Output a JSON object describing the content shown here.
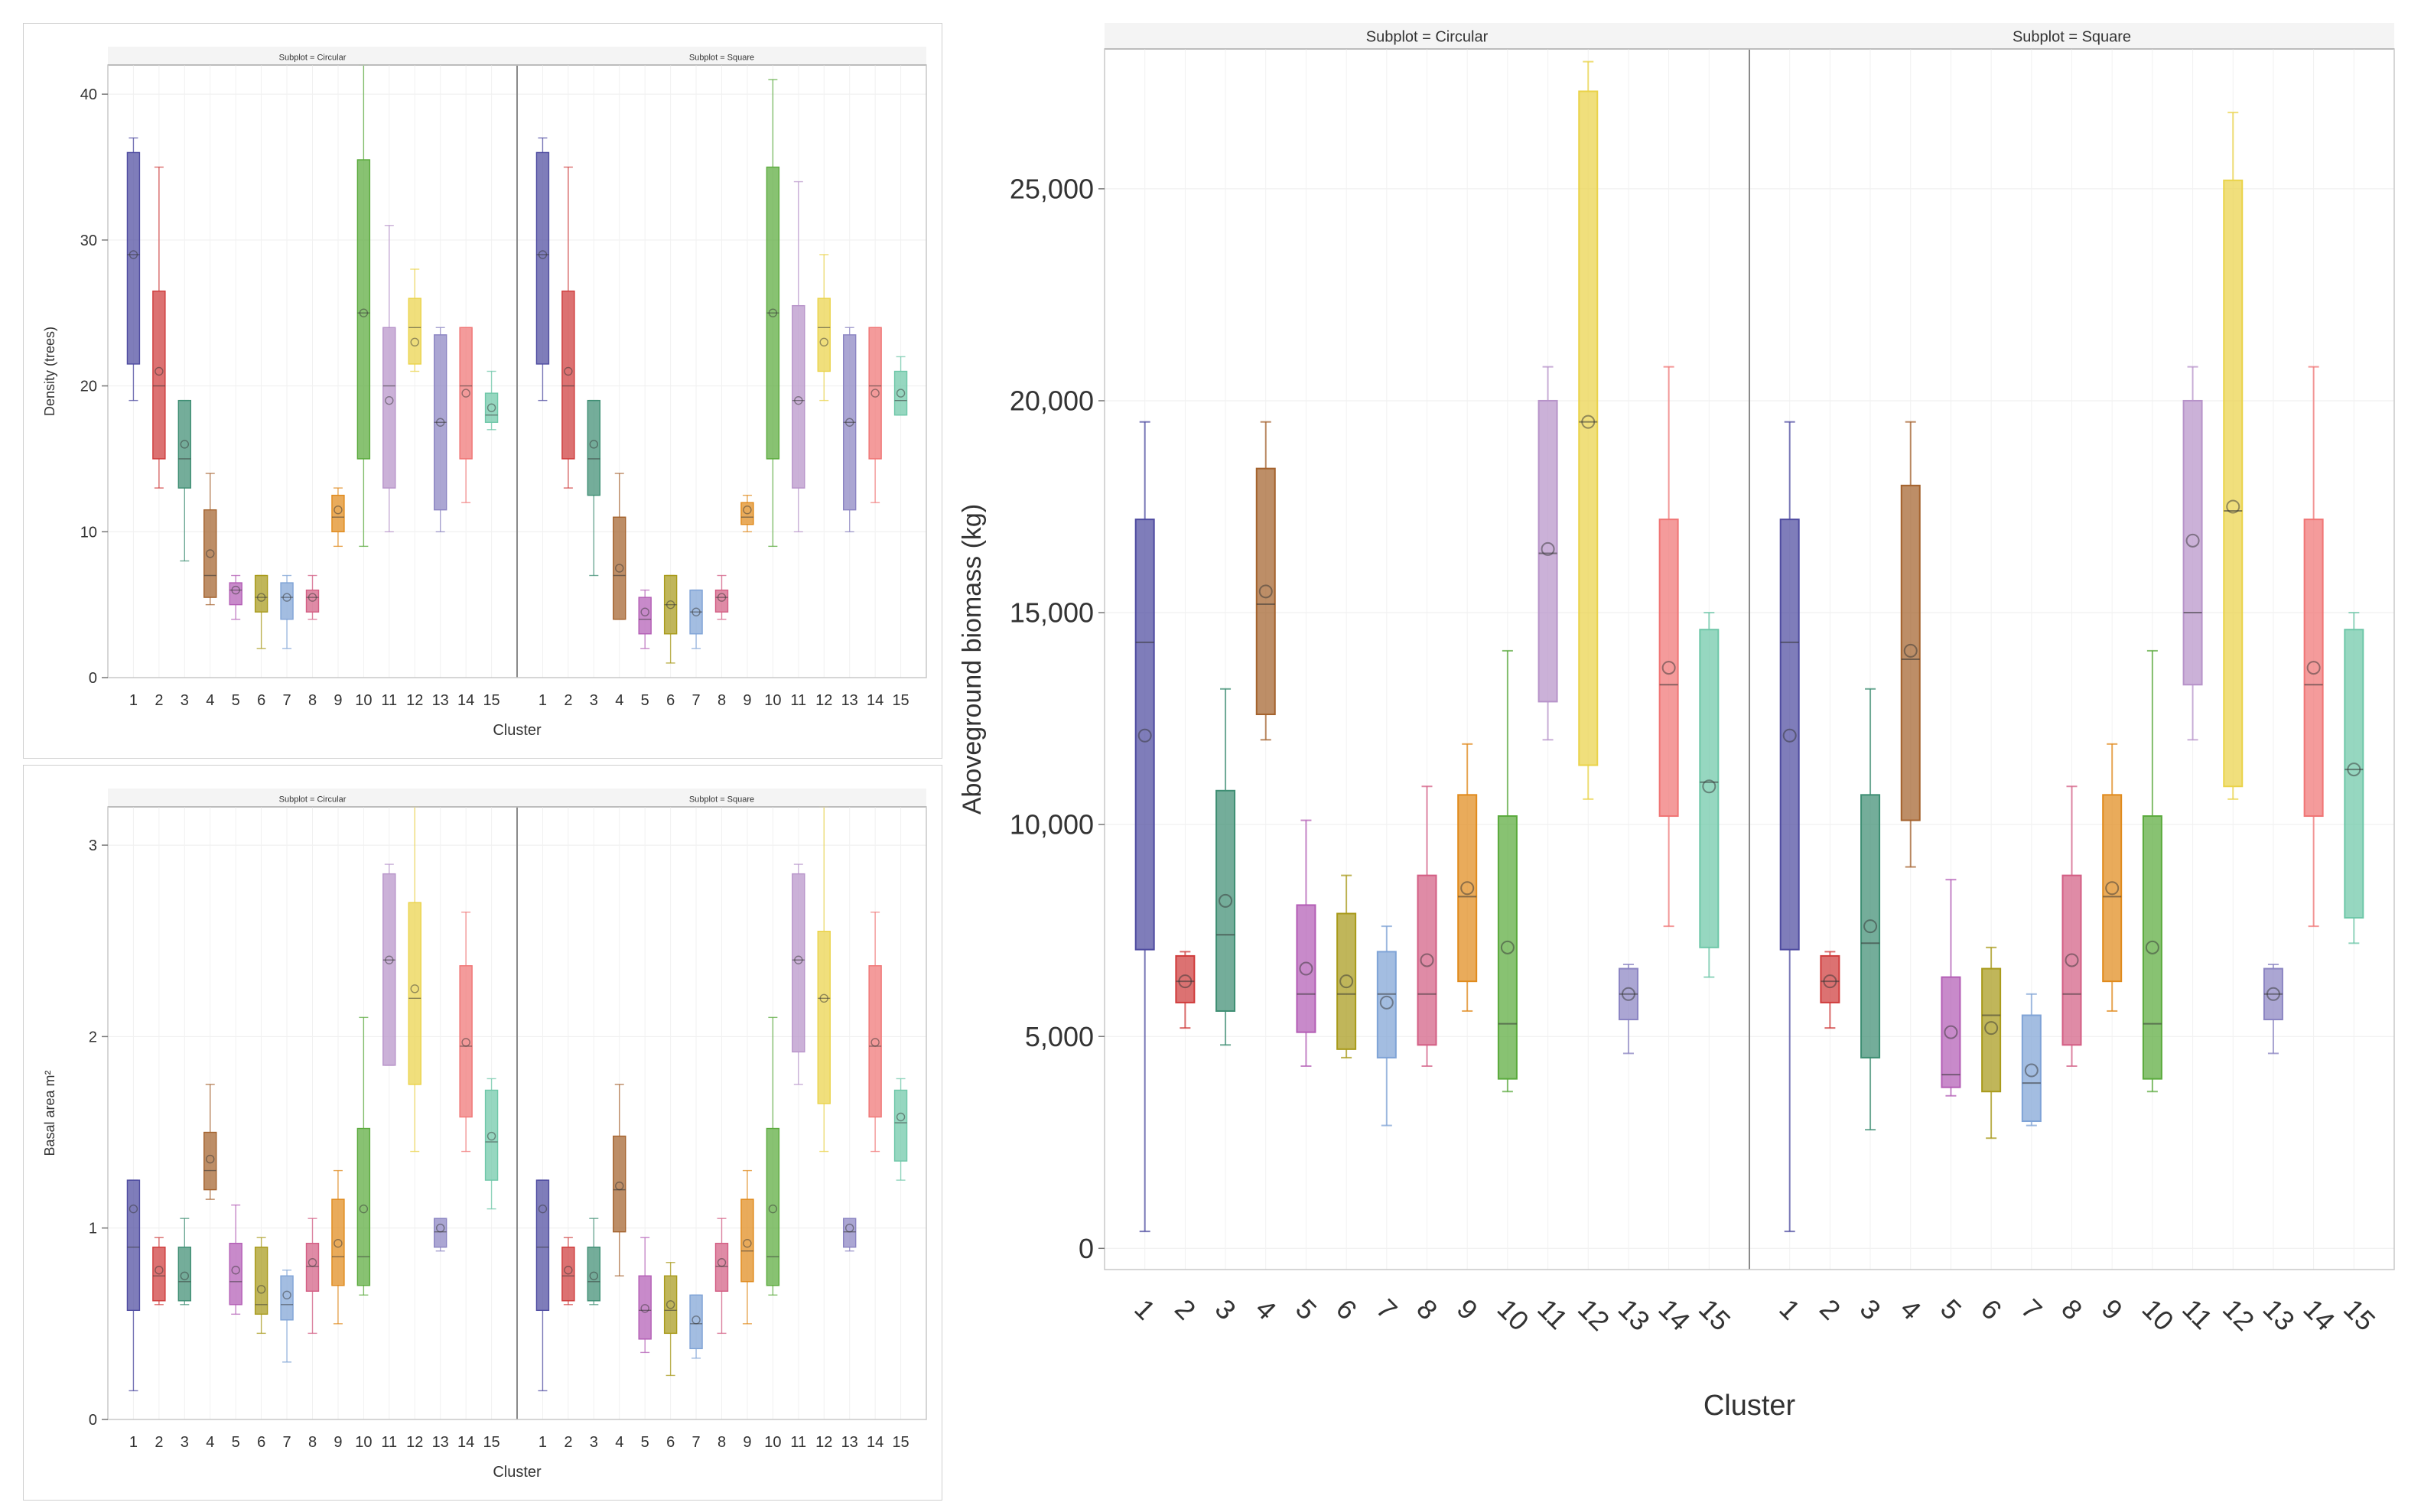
{
  "colors": [
    "#4e4ba0",
    "#cf3b3b",
    "#3e8e73",
    "#a4622d",
    "#b35db5",
    "#a89a1a",
    "#7fa3d6",
    "#d35e84",
    "#e08a1c",
    "#5aaa3c",
    "#b793c9",
    "#ead34a",
    "#8b84c2",
    "#f07575",
    "#6ec7a8"
  ],
  "chart_data": [
    {
      "type": "box",
      "id": "density",
      "xlabel": "Cluster",
      "ylabel": "Density (trees)",
      "ylim": [
        0,
        42
      ],
      "yticks": [
        "0",
        "10",
        "20",
        "30",
        "40"
      ],
      "ytick_values": [
        0,
        10,
        20,
        30,
        40
      ],
      "categories": [
        "1",
        "2",
        "3",
        "4",
        "5",
        "6",
        "7",
        "8",
        "9",
        "10",
        "11",
        "12",
        "13",
        "14",
        "15"
      ],
      "facets": [
        {
          "title": "Subplot = Circular",
          "boxes": [
            {
              "min": 19,
              "q1": 21.5,
              "median": 29,
              "q3": 36,
              "max": 37,
              "mean": 29
            },
            {
              "min": 13,
              "q1": 15,
              "median": 20,
              "q3": 26.5,
              "max": 35,
              "mean": 21
            },
            {
              "min": 8,
              "q1": 13,
              "median": 15,
              "q3": 19,
              "max": 19,
              "mean": 16
            },
            {
              "min": 5,
              "q1": 5.5,
              "median": 7,
              "q3": 11.5,
              "max": 14,
              "mean": 8.5
            },
            {
              "min": 4,
              "q1": 5,
              "median": 6,
              "q3": 6.5,
              "max": 7,
              "mean": 6
            },
            {
              "min": 2,
              "q1": 4.5,
              "median": 5.5,
              "q3": 7,
              "max": 7,
              "mean": 5.5
            },
            {
              "min": 2,
              "q1": 4,
              "median": 5.5,
              "q3": 6.5,
              "max": 7,
              "mean": 5.5
            },
            {
              "min": 4,
              "q1": 4.5,
              "median": 5.5,
              "q3": 6,
              "max": 7,
              "mean": 5.5
            },
            {
              "min": 9,
              "q1": 10,
              "median": 11,
              "q3": 12.5,
              "max": 13,
              "mean": 11.5
            },
            {
              "min": 9,
              "q1": 15,
              "median": 25,
              "q3": 35.5,
              "max": 42,
              "mean": 25
            },
            {
              "min": 10,
              "q1": 13,
              "median": 20,
              "q3": 24,
              "max": 31,
              "mean": 19
            },
            {
              "min": 21,
              "q1": 21.5,
              "median": 24,
              "q3": 26,
              "max": 28,
              "mean": 23
            },
            {
              "min": 10,
              "q1": 11.5,
              "median": 17.5,
              "q3": 23.5,
              "max": 24,
              "mean": 17.5
            },
            {
              "min": 12,
              "q1": 15,
              "median": 20,
              "q3": 24,
              "max": 24,
              "mean": 19.5
            },
            {
              "min": 17,
              "q1": 17.5,
              "median": 18,
              "q3": 19.5,
              "max": 21,
              "mean": 18.5
            }
          ]
        },
        {
          "title": "Subplot = Square",
          "boxes": [
            {
              "min": 19,
              "q1": 21.5,
              "median": 29,
              "q3": 36,
              "max": 37,
              "mean": 29
            },
            {
              "min": 13,
              "q1": 15,
              "median": 20,
              "q3": 26.5,
              "max": 35,
              "mean": 21
            },
            {
              "min": 7,
              "q1": 12.5,
              "median": 15,
              "q3": 19,
              "max": 19,
              "mean": 16
            },
            {
              "min": 4,
              "q1": 4,
              "median": 7,
              "q3": 11,
              "max": 14,
              "mean": 7.5
            },
            {
              "min": 2,
              "q1": 3,
              "median": 4,
              "q3": 5.5,
              "max": 6,
              "mean": 4.5
            },
            {
              "min": 1,
              "q1": 3,
              "median": 5,
              "q3": 7,
              "max": 7,
              "mean": 5
            },
            {
              "min": 2,
              "q1": 3,
              "median": 4.5,
              "q3": 6,
              "max": 6,
              "mean": 4.5
            },
            {
              "min": 4,
              "q1": 4.5,
              "median": 5.5,
              "q3": 6,
              "max": 7,
              "mean": 5.5
            },
            {
              "min": 10,
              "q1": 10.5,
              "median": 11,
              "q3": 12,
              "max": 12.5,
              "mean": 11.5
            },
            {
              "min": 9,
              "q1": 15,
              "median": 25,
              "q3": 35,
              "max": 41,
              "mean": 25
            },
            {
              "min": 10,
              "q1": 13,
              "median": 19,
              "q3": 25.5,
              "max": 34,
              "mean": 19
            },
            {
              "min": 19,
              "q1": 21,
              "median": 24,
              "q3": 26,
              "max": 29,
              "mean": 23
            },
            {
              "min": 10,
              "q1": 11.5,
              "median": 17.5,
              "q3": 23.5,
              "max": 24,
              "mean": 17.5
            },
            {
              "min": 12,
              "q1": 15,
              "median": 20,
              "q3": 24,
              "max": 24,
              "mean": 19.5
            },
            {
              "min": 18,
              "q1": 18,
              "median": 19,
              "q3": 21,
              "max": 22,
              "mean": 19.5
            }
          ]
        }
      ]
    },
    {
      "type": "box",
      "id": "basal",
      "xlabel": "Cluster",
      "ylabel": "Basal area m²",
      "ylim": [
        0,
        3.2
      ],
      "yticks": [
        "0",
        "1",
        "2",
        "3"
      ],
      "ytick_values": [
        0,
        1,
        2,
        3
      ],
      "categories": [
        "1",
        "2",
        "3",
        "4",
        "5",
        "6",
        "7",
        "8",
        "9",
        "10",
        "11",
        "12",
        "13",
        "14",
        "15"
      ],
      "facets": [
        {
          "title": "Subplot = Circular",
          "boxes": [
            {
              "min": 0.15,
              "q1": 0.57,
              "median": 0.9,
              "q3": 1.25,
              "max": 1.25,
              "mean": 1.1
            },
            {
              "min": 0.6,
              "q1": 0.62,
              "median": 0.75,
              "q3": 0.9,
              "max": 0.95,
              "mean": 0.78
            },
            {
              "min": 0.6,
              "q1": 0.62,
              "median": 0.72,
              "q3": 0.9,
              "max": 1.05,
              "mean": 0.75
            },
            {
              "min": 1.15,
              "q1": 1.2,
              "median": 1.3,
              "q3": 1.5,
              "max": 1.75,
              "mean": 1.36
            },
            {
              "min": 0.55,
              "q1": 0.6,
              "median": 0.72,
              "q3": 0.92,
              "max": 1.12,
              "mean": 0.78
            },
            {
              "min": 0.45,
              "q1": 0.55,
              "median": 0.6,
              "q3": 0.9,
              "max": 0.95,
              "mean": 0.68
            },
            {
              "min": 0.3,
              "q1": 0.52,
              "median": 0.6,
              "q3": 0.75,
              "max": 0.78,
              "mean": 0.65
            },
            {
              "min": 0.45,
              "q1": 0.67,
              "median": 0.8,
              "q3": 0.92,
              "max": 1.05,
              "mean": 0.82
            },
            {
              "min": 0.5,
              "q1": 0.7,
              "median": 0.85,
              "q3": 1.15,
              "max": 1.3,
              "mean": 0.92
            },
            {
              "min": 0.65,
              "q1": 0.7,
              "median": 0.85,
              "q3": 1.52,
              "max": 2.1,
              "mean": 1.1
            },
            {
              "min": 1.85,
              "q1": 1.85,
              "median": 2.4,
              "q3": 2.85,
              "max": 2.9,
              "mean": 2.4
            },
            {
              "min": 1.4,
              "q1": 1.75,
              "median": 2.2,
              "q3": 2.7,
              "max": 3.2,
              "mean": 2.25
            },
            {
              "min": 0.88,
              "q1": 0.9,
              "median": 0.98,
              "q3": 1.05,
              "max": 1.05,
              "mean": 1.0
            },
            {
              "min": 1.4,
              "q1": 1.58,
              "median": 1.95,
              "q3": 2.37,
              "max": 2.65,
              "mean": 1.97
            },
            {
              "min": 1.1,
              "q1": 1.25,
              "median": 1.45,
              "q3": 1.72,
              "max": 1.78,
              "mean": 1.48
            }
          ]
        },
        {
          "title": "Subplot = Square",
          "boxes": [
            {
              "min": 0.15,
              "q1": 0.57,
              "median": 0.9,
              "q3": 1.25,
              "max": 1.25,
              "mean": 1.1
            },
            {
              "min": 0.6,
              "q1": 0.62,
              "median": 0.75,
              "q3": 0.9,
              "max": 0.95,
              "mean": 0.78
            },
            {
              "min": 0.6,
              "q1": 0.62,
              "median": 0.72,
              "q3": 0.9,
              "max": 1.05,
              "mean": 0.75
            },
            {
              "min": 0.75,
              "q1": 0.98,
              "median": 1.2,
              "q3": 1.48,
              "max": 1.75,
              "mean": 1.22
            },
            {
              "min": 0.35,
              "q1": 0.42,
              "median": 0.57,
              "q3": 0.75,
              "max": 0.95,
              "mean": 0.58
            },
            {
              "min": 0.23,
              "q1": 0.45,
              "median": 0.57,
              "q3": 0.75,
              "max": 0.82,
              "mean": 0.6
            },
            {
              "min": 0.32,
              "q1": 0.37,
              "median": 0.5,
              "q3": 0.65,
              "max": 0.65,
              "mean": 0.52
            },
            {
              "min": 0.45,
              "q1": 0.67,
              "median": 0.8,
              "q3": 0.92,
              "max": 1.05,
              "mean": 0.82
            },
            {
              "min": 0.5,
              "q1": 0.72,
              "median": 0.88,
              "q3": 1.15,
              "max": 1.3,
              "mean": 0.92
            },
            {
              "min": 0.65,
              "q1": 0.7,
              "median": 0.85,
              "q3": 1.52,
              "max": 2.1,
              "mean": 1.1
            },
            {
              "min": 1.75,
              "q1": 1.92,
              "median": 2.4,
              "q3": 2.85,
              "max": 2.9,
              "mean": 2.4
            },
            {
              "min": 1.4,
              "q1": 1.65,
              "median": 2.2,
              "q3": 2.55,
              "max": 3.2,
              "mean": 2.2
            },
            {
              "min": 0.88,
              "q1": 0.9,
              "median": 0.98,
              "q3": 1.05,
              "max": 1.05,
              "mean": 1.0
            },
            {
              "min": 1.4,
              "q1": 1.58,
              "median": 1.95,
              "q3": 2.37,
              "max": 2.65,
              "mean": 1.97
            },
            {
              "min": 1.25,
              "q1": 1.35,
              "median": 1.55,
              "q3": 1.72,
              "max": 1.78,
              "mean": 1.58
            }
          ]
        }
      ]
    },
    {
      "type": "box",
      "id": "biomass",
      "xlabel": "Cluster",
      "ylabel": "Aboveground biomass (kg)",
      "ylim": [
        -500,
        28300
      ],
      "yticks": [
        "0",
        "5,000",
        "10,000",
        "15,000",
        "20,000",
        "25,000"
      ],
      "ytick_values": [
        0,
        5000,
        10000,
        15000,
        20000,
        25000
      ],
      "categories": [
        "1",
        "2",
        "3",
        "4",
        "5",
        "6",
        "7",
        "8",
        "9",
        "10",
        "11",
        "12",
        "13",
        "14",
        "15"
      ],
      "facets": [
        {
          "title": "Subplot = Circular",
          "boxes": [
            {
              "min": 400,
              "q1": 7050,
              "median": 14300,
              "q3": 17200,
              "max": 19500,
              "mean": 12100
            },
            {
              "min": 5200,
              "q1": 5800,
              "median": 6300,
              "q3": 6900,
              "max": 7000,
              "mean": 6300
            },
            {
              "min": 4800,
              "q1": 5600,
              "median": 7400,
              "q3": 10800,
              "max": 13200,
              "mean": 8200
            },
            {
              "min": 12000,
              "q1": 12600,
              "median": 15200,
              "q3": 18400,
              "max": 19500,
              "mean": 15500
            },
            {
              "min": 4300,
              "q1": 5100,
              "median": 6000,
              "q3": 8100,
              "max": 10100,
              "mean": 6600
            },
            {
              "min": 4500,
              "q1": 4700,
              "median": 6000,
              "q3": 7900,
              "max": 8800,
              "mean": 6300
            },
            {
              "min": 2900,
              "q1": 4500,
              "median": 6000,
              "q3": 7000,
              "max": 7600,
              "mean": 5800
            },
            {
              "min": 4300,
              "q1": 4800,
              "median": 6000,
              "q3": 8800,
              "max": 10900,
              "mean": 6800
            },
            {
              "min": 5600,
              "q1": 6300,
              "median": 8300,
              "q3": 10700,
              "max": 11900,
              "mean": 8500
            },
            {
              "min": 3700,
              "q1": 4000,
              "median": 5300,
              "q3": 10200,
              "max": 14100,
              "mean": 7100
            },
            {
              "min": 12000,
              "q1": 12900,
              "median": 16400,
              "q3": 20000,
              "max": 20800,
              "mean": 16500
            },
            {
              "min": 10600,
              "q1": 11400,
              "median": 19500,
              "q3": 27300,
              "max": 28000,
              "mean": 19500
            },
            {
              "min": 4600,
              "q1": 5400,
              "median": 6000,
              "q3": 6600,
              "max": 6700,
              "mean": 6000
            },
            {
              "min": 7600,
              "q1": 10200,
              "median": 13300,
              "q3": 17200,
              "max": 20800,
              "mean": 13700
            },
            {
              "min": 6400,
              "q1": 7100,
              "median": 11000,
              "q3": 14600,
              "max": 15000,
              "mean": 10900
            }
          ]
        },
        {
          "title": "Subplot = Square",
          "boxes": [
            {
              "min": 400,
              "q1": 7050,
              "median": 14300,
              "q3": 17200,
              "max": 19500,
              "mean": 12100
            },
            {
              "min": 5200,
              "q1": 5800,
              "median": 6300,
              "q3": 6900,
              "max": 7000,
              "mean": 6300
            },
            {
              "min": 2800,
              "q1": 4500,
              "median": 7200,
              "q3": 10700,
              "max": 13200,
              "mean": 7600
            },
            {
              "min": 9000,
              "q1": 10100,
              "median": 13900,
              "q3": 18000,
              "max": 19500,
              "mean": 14100
            },
            {
              "min": 3600,
              "q1": 3800,
              "median": 4100,
              "q3": 6400,
              "max": 8700,
              "mean": 5100
            },
            {
              "min": 2600,
              "q1": 3700,
              "median": 5500,
              "q3": 6600,
              "max": 7100,
              "mean": 5200
            },
            {
              "min": 2900,
              "q1": 3000,
              "median": 3900,
              "q3": 5500,
              "max": 6000,
              "mean": 4200
            },
            {
              "min": 4300,
              "q1": 4800,
              "median": 6000,
              "q3": 8800,
              "max": 10900,
              "mean": 6800
            },
            {
              "min": 5600,
              "q1": 6300,
              "median": 8300,
              "q3": 10700,
              "max": 11900,
              "mean": 8500
            },
            {
              "min": 3700,
              "q1": 4000,
              "median": 5300,
              "q3": 10200,
              "max": 14100,
              "mean": 7100
            },
            {
              "min": 12000,
              "q1": 13300,
              "median": 15000,
              "q3": 20000,
              "max": 20800,
              "mean": 16700
            },
            {
              "min": 10600,
              "q1": 10900,
              "median": 17400,
              "q3": 25200,
              "max": 26800,
              "mean": 17500
            },
            {
              "min": 4600,
              "q1": 5400,
              "median": 6000,
              "q3": 6600,
              "max": 6700,
              "mean": 6000
            },
            {
              "min": 7600,
              "q1": 10200,
              "median": 13300,
              "q3": 17200,
              "max": 20800,
              "mean": 13700
            },
            {
              "min": 7200,
              "q1": 7800,
              "median": 11300,
              "q3": 14600,
              "max": 15000,
              "mean": 11300
            }
          ]
        }
      ]
    }
  ]
}
